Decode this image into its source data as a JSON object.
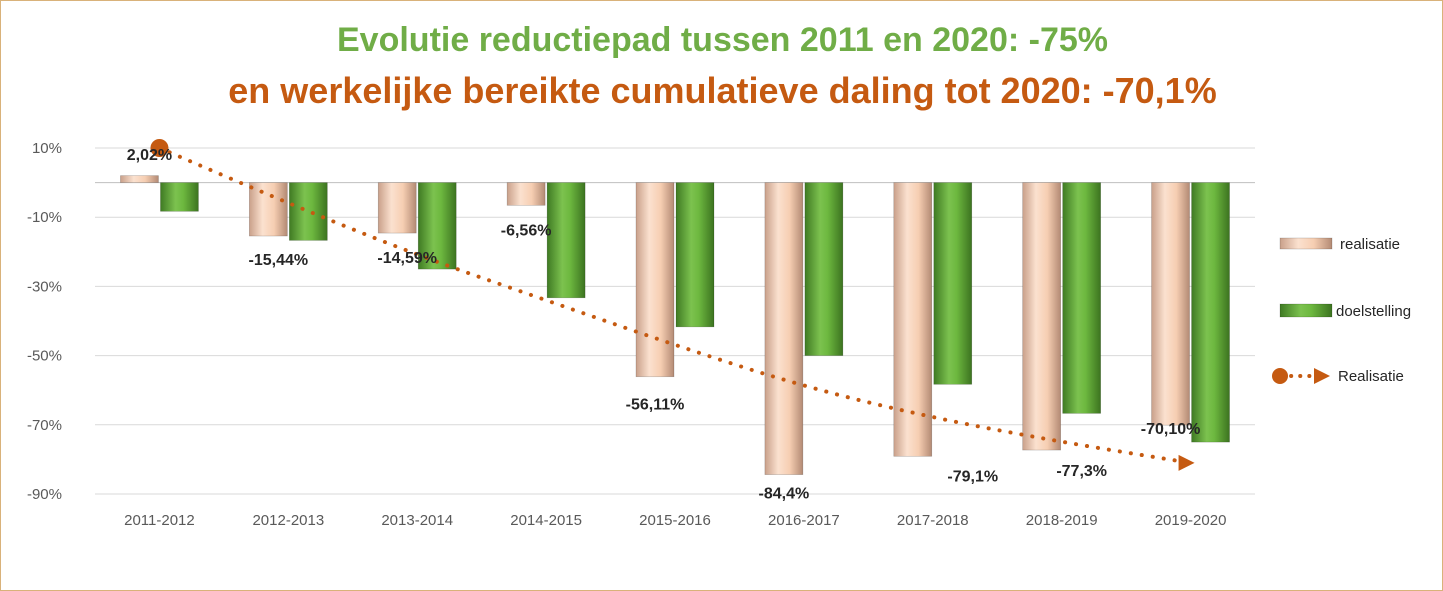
{
  "chart_data": {
    "type": "bar",
    "title": "Evolutie reductiepad tussen 2011 en 2020: -75%",
    "subtitle": "en werkelijke bereikte cumulatieve daling tot 2020: -70,1%",
    "categories": [
      "2011-2012",
      "2012-2013",
      "2013-2014",
      "2014-2015",
      "2015-2016",
      "2016-2017",
      "2017-2018",
      "2018-2019",
      "2019-2020"
    ],
    "series": [
      {
        "name": "realisatie",
        "kind": "bar",
        "color": "#f4c7a8",
        "values": [
          2.02,
          -15.44,
          -14.59,
          -6.56,
          -56.11,
          -84.4,
          -79.1,
          -77.3,
          -70.1
        ]
      },
      {
        "name": "doelstelling",
        "kind": "bar",
        "color": "#70ad47",
        "values": [
          -8.3,
          -16.7,
          -25.0,
          -33.3,
          -41.7,
          -50.0,
          -58.3,
          -66.7,
          -75.0
        ]
      },
      {
        "name": "Realisatie",
        "kind": "trendline",
        "color": "#c55a11",
        "values": [
          10.0,
          -6.0,
          -21.0,
          -34.0,
          -47.0,
          -59.0,
          -68.0,
          -75.0,
          -81.0
        ]
      }
    ],
    "data_labels": [
      "2,02%",
      "-15,44%",
      "-14,59%",
      "-6,56%",
      "-56,11%",
      "-84,4%",
      "-79,1%",
      "-77,3%",
      "-70,10%"
    ],
    "yticks": [
      10,
      -10,
      -30,
      -50,
      -70,
      -90
    ],
    "ytick_labels": [
      "10%",
      "-10%",
      "-30%",
      "-50%",
      "-70%",
      "-90%"
    ],
    "ylim": [
      -90,
      10
    ],
    "grid": true,
    "legend_position": "right"
  }
}
